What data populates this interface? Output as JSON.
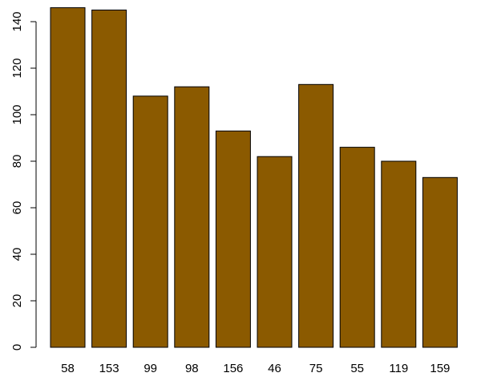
{
  "chart_data": {
    "type": "bar",
    "categories": [
      "58",
      "153",
      "99",
      "98",
      "156",
      "46",
      "75",
      "55",
      "119",
      "159"
    ],
    "values": [
      146,
      145,
      108,
      112,
      93,
      82,
      113,
      86,
      80,
      73
    ],
    "yticks": [
      0,
      20,
      40,
      60,
      80,
      100,
      120,
      140
    ],
    "ylim": [
      0,
      146
    ],
    "title": "",
    "xlabel": "",
    "ylabel": "",
    "grid": false,
    "bar_color": "#8B5A00",
    "bar_border_color": "#000000"
  }
}
